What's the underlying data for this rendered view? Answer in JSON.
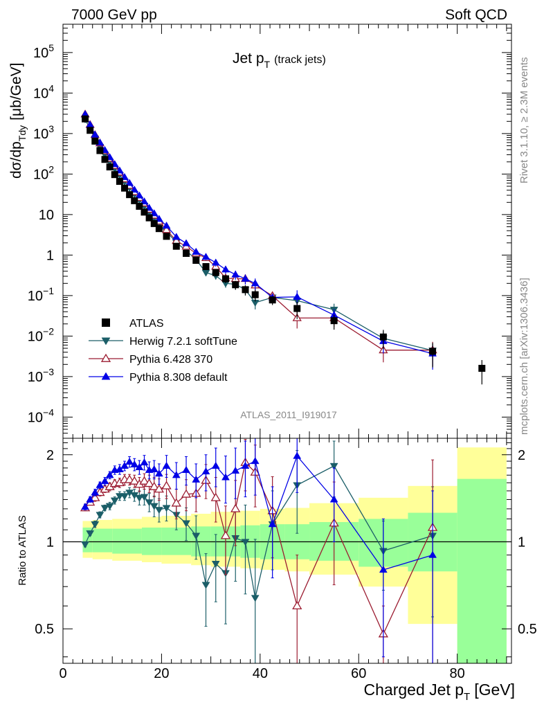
{
  "header": {
    "left": "7000 GeV pp",
    "right": "Soft QCD"
  },
  "side_labels": {
    "rivet": "Rivet 3.1.10, ≥ 2.3M events",
    "mcplots": "mcplots.cern.ch [arXiv:1306.3436]"
  },
  "chart_data": [
    {
      "type": "scatter",
      "panel": "main",
      "title_main": "Jet p",
      "title_sub": "T",
      "title_note": "(track jets)",
      "analysis_id": "ATLAS_2011_I919017",
      "ylabel_main": "dσ/dp",
      "ylabel_sub": "Tdy",
      "ylabel_unit": "[μb/GeV]",
      "yscale": "log",
      "xlim": [
        0,
        91
      ],
      "ylim": [
        3e-05,
        500000
      ],
      "y_ticks": [
        {
          "v": 0.0001,
          "m": "10",
          "e": "−4"
        },
        {
          "v": 0.001,
          "m": "10",
          "e": "−3"
        },
        {
          "v": 0.01,
          "m": "10",
          "e": "−2"
        },
        {
          "v": 0.1,
          "m": "10",
          "e": "−1"
        },
        {
          "v": 1,
          "m": "1",
          "e": ""
        },
        {
          "v": 10,
          "m": "10",
          "e": ""
        },
        {
          "v": 100,
          "m": "10",
          "e": "2"
        },
        {
          "v": 1000,
          "m": "10",
          "e": "3"
        },
        {
          "v": 10000,
          "m": "10",
          "e": "4"
        },
        {
          "v": 100000,
          "m": "10",
          "e": "5"
        }
      ],
      "legend": [
        "ATLAS",
        "Herwig 7.2.1 softTune",
        "Pythia 6.428 370",
        "Pythia 8.308 default"
      ],
      "legend_position": "lower-left",
      "x": [
        4.5,
        5.5,
        6.5,
        7.5,
        8.5,
        9.5,
        10.5,
        11.5,
        12.5,
        13.5,
        14.5,
        15.5,
        16.5,
        17.5,
        18.5,
        19.5,
        21,
        23,
        25,
        27,
        29,
        31,
        33,
        35,
        37,
        39,
        42.5,
        47.5,
        55,
        65,
        75,
        85
      ],
      "series": [
        {
          "name": "ATLAS",
          "color": "#000000",
          "marker": "square",
          "values": [
            2300,
            1200,
            650,
            380,
            230,
            150,
            97,
            66,
            45,
            31,
            22,
            16,
            11.5,
            8.3,
            6.0,
            4.5,
            2.9,
            1.65,
            1.1,
            0.74,
            0.52,
            0.37,
            0.26,
            0.185,
            0.14,
            0.105,
            0.078,
            0.048,
            0.024,
            0.0095,
            0.0042,
            0.0016
          ]
        },
        {
          "name": "Herwig 7.2.1 softTune",
          "color": "#1b5e68",
          "marker": "triangle-down",
          "values": [
            2250,
            1280,
            750,
            470,
            300,
            200,
            135,
            95,
            65,
            46,
            32,
            23,
            16.5,
            11.4,
            8.0,
            5.8,
            3.8,
            2.05,
            1.28,
            0.78,
            0.37,
            0.31,
            0.2,
            0.19,
            0.14,
            0.067,
            0.09,
            0.075,
            0.045,
            0.0088,
            0.0044
          ]
        },
        {
          "name": "Pythia 6.428 370",
          "color": "#9b1b30",
          "marker": "triangle-up-open",
          "values": [
            3000,
            1650,
            930,
            580,
            370,
            240,
            160,
            110,
            75,
            52,
            36,
            26,
            19,
            13.3,
            9.5,
            6.8,
            4.2,
            2.25,
            1.63,
            1.1,
            0.85,
            0.52,
            0.27,
            0.26,
            0.26,
            0.18,
            0.099,
            0.028,
            0.028,
            0.0045,
            0.0045
          ]
        },
        {
          "name": "Pythia 8.308 default",
          "color": "#0000e6",
          "marker": "triangle-up",
          "values": [
            3000,
            1650,
            940,
            600,
            390,
            260,
            175,
            122,
            84,
            60,
            41,
            29.5,
            21,
            14.6,
            10.7,
            7.8,
            5.3,
            2.8,
            1.95,
            1.2,
            0.9,
            0.65,
            0.44,
            0.33,
            0.26,
            0.2,
            0.09,
            0.093,
            0.033,
            0.0075,
            0.0037
          ]
        }
      ]
    },
    {
      "type": "scatter",
      "panel": "ratio",
      "xlabel_main": "Charged Jet p",
      "xlabel_sub": "T",
      "xlabel_unit": "[GeV]",
      "ylabel": "Ratio to ATLAS",
      "yscale": "log",
      "ylim": [
        0.38,
        2.28
      ],
      "xlim": [
        0,
        91
      ],
      "x_ticks": [
        "0",
        "20",
        "40",
        "60",
        "80"
      ],
      "y_ticks": [
        "0.5",
        "1",
        "2"
      ],
      "x": [
        4.5,
        5.5,
        6.5,
        7.5,
        8.5,
        9.5,
        10.5,
        11.5,
        12.5,
        13.5,
        14.5,
        15.5,
        16.5,
        17.5,
        18.5,
        19.5,
        21,
        23,
        25,
        27,
        29,
        31,
        33,
        35,
        37,
        39,
        42.5,
        47.5,
        55,
        65,
        75
      ],
      "bands": [
        {
          "x": [
            4,
            6
          ],
          "inner": [
            0.92,
            1.12
          ],
          "outer": [
            0.88,
            1.18
          ]
        },
        {
          "x": [
            6,
            10
          ],
          "inner": [
            0.92,
            1.11
          ],
          "outer": [
            0.87,
            1.19
          ]
        },
        {
          "x": [
            10,
            16
          ],
          "inner": [
            0.91,
            1.11
          ],
          "outer": [
            0.86,
            1.2
          ]
        },
        {
          "x": [
            16,
            20
          ],
          "inner": [
            0.9,
            1.12
          ],
          "outer": [
            0.85,
            1.22
          ]
        },
        {
          "x": [
            20,
            26
          ],
          "inner": [
            0.9,
            1.12
          ],
          "outer": [
            0.84,
            1.23
          ]
        },
        {
          "x": [
            26,
            30
          ],
          "inner": [
            0.89,
            1.13
          ],
          "outer": [
            0.83,
            1.25
          ]
        },
        {
          "x": [
            30,
            36
          ],
          "inner": [
            0.89,
            1.13
          ],
          "outer": [
            0.82,
            1.27
          ]
        },
        {
          "x": [
            36,
            40
          ],
          "inner": [
            0.88,
            1.14
          ],
          "outer": [
            0.81,
            1.28
          ]
        },
        {
          "x": [
            40,
            45
          ],
          "inner": [
            0.87,
            1.15
          ],
          "outer": [
            0.8,
            1.3
          ]
        },
        {
          "x": [
            45,
            50
          ],
          "inner": [
            0.87,
            1.15
          ],
          "outer": [
            0.79,
            1.31
          ]
        },
        {
          "x": [
            50,
            60
          ],
          "inner": [
            0.86,
            1.17
          ],
          "outer": [
            0.77,
            1.36
          ]
        },
        {
          "x": [
            60,
            70
          ],
          "inner": [
            0.82,
            1.2
          ],
          "outer": [
            0.7,
            1.42
          ]
        },
        {
          "x": [
            70,
            80
          ],
          "inner": [
            0.79,
            1.26
          ],
          "outer": [
            0.52,
            1.56
          ]
        },
        {
          "x": [
            80,
            90
          ],
          "inner": [
            0.38,
            1.65
          ],
          "outer": [
            0.38,
            2.12
          ]
        }
      ],
      "series": [
        {
          "name": "Herwig 7.2.1 softTune",
          "color": "#1b5e68",
          "marker": "triangle-down",
          "values": [
            0.98,
            1.07,
            1.15,
            1.24,
            1.31,
            1.33,
            1.39,
            1.44,
            1.44,
            1.48,
            1.45,
            1.42,
            1.43,
            1.37,
            1.33,
            1.29,
            1.31,
            1.24,
            1.16,
            1.05,
            0.71,
            0.84,
            0.78,
            1.03,
            1.0,
            0.64,
            1.15,
            1.57,
            1.83,
            0.93,
            1.05
          ],
          "errors": [
            0.02,
            0.02,
            0.03,
            0.03,
            0.03,
            0.04,
            0.04,
            0.05,
            0.05,
            0.06,
            0.07,
            0.08,
            0.09,
            0.1,
            0.11,
            0.12,
            0.13,
            0.14,
            0.15,
            0.18,
            0.2,
            0.22,
            0.26,
            0.3,
            0.34,
            0.38,
            0.35,
            0.5,
            0.4,
            0.25,
            0.5
          ]
        },
        {
          "name": "Pythia 6.428 370",
          "color": "#9b1b30",
          "marker": "triangle-up-open",
          "values": [
            1.31,
            1.37,
            1.42,
            1.48,
            1.52,
            1.55,
            1.59,
            1.6,
            1.64,
            1.64,
            1.62,
            1.58,
            1.62,
            1.59,
            1.55,
            1.52,
            1.56,
            1.36,
            1.46,
            1.47,
            1.63,
            1.42,
            1.05,
            1.3,
            1.88,
            1.74,
            1.28,
            0.6,
            1.16,
            0.48,
            1.12
          ],
          "errors": [
            0.03,
            0.03,
            0.04,
            0.04,
            0.04,
            0.05,
            0.05,
            0.06,
            0.07,
            0.07,
            0.08,
            0.09,
            0.1,
            0.11,
            0.12,
            0.13,
            0.15,
            0.16,
            0.18,
            0.2,
            0.22,
            0.25,
            0.28,
            0.33,
            0.38,
            0.42,
            0.4,
            0.3,
            0.45,
            0.12,
            0.8
          ]
        },
        {
          "name": "Pythia 8.308 default",
          "color": "#0000e6",
          "marker": "triangle-up",
          "values": [
            1.32,
            1.4,
            1.48,
            1.57,
            1.62,
            1.7,
            1.77,
            1.78,
            1.83,
            1.89,
            1.85,
            1.81,
            1.88,
            1.77,
            1.78,
            1.72,
            1.83,
            1.7,
            1.77,
            1.64,
            1.75,
            1.83,
            1.67,
            1.76,
            1.83,
            1.9,
            1.15,
            1.98,
            1.4,
            0.8,
            0.9
          ],
          "errors": [
            0.03,
            0.03,
            0.04,
            0.04,
            0.05,
            0.05,
            0.06,
            0.07,
            0.07,
            0.08,
            0.09,
            0.1,
            0.11,
            0.12,
            0.13,
            0.14,
            0.16,
            0.18,
            0.2,
            0.22,
            0.25,
            0.28,
            0.31,
            0.35,
            0.4,
            0.45,
            0.4,
            0.5,
            0.4,
            0.4,
            0.6
          ]
        }
      ]
    }
  ]
}
